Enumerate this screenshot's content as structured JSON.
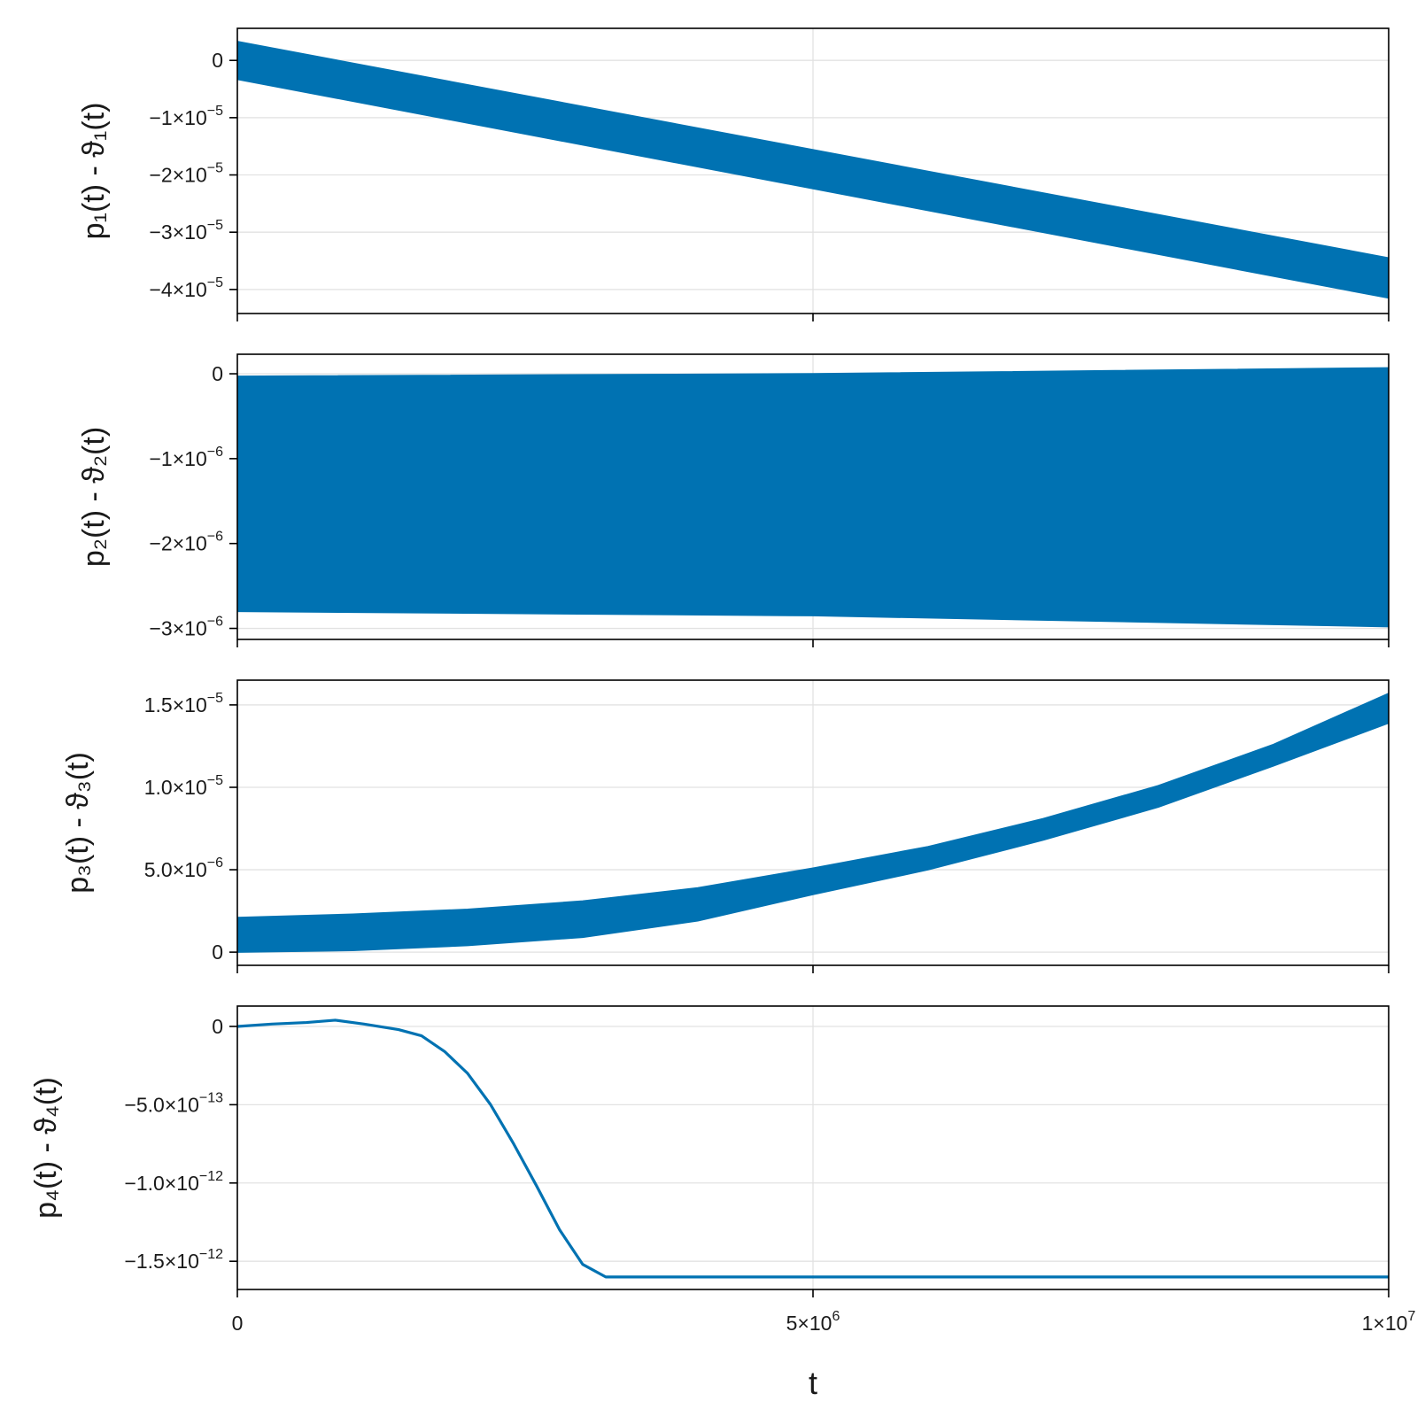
{
  "chart_data": [
    {
      "type": "area",
      "ylabel": "p₁(t) - ϑ₁(t)",
      "color": "#0072b2",
      "xlim": [
        0,
        10000000
      ],
      "ylim": [
        -4.42e-05,
        5.6e-06
      ],
      "yticks": [
        {
          "value": 0,
          "mant": "0",
          "exp": ""
        },
        {
          "value": -1e-05,
          "mant": "−1×10",
          "exp": "−5"
        },
        {
          "value": -2e-05,
          "mant": "−2×10",
          "exp": "−5"
        },
        {
          "value": -3e-05,
          "mant": "−3×10",
          "exp": "−5"
        },
        {
          "value": -4e-05,
          "mant": "−4×10",
          "exp": "−5"
        }
      ],
      "band_x": [
        0,
        10000000
      ],
      "band_upper": [
        3.3e-06,
        -3.45e-05
      ],
      "band_lower": [
        -3.3e-06,
        -4.15e-05
      ]
    },
    {
      "type": "area",
      "ylabel": "p₂(t) - ϑ₂(t)",
      "color": "#0072b2",
      "xlim": [
        0,
        10000000
      ],
      "ylim": [
        -3.13e-06,
        2.3e-07
      ],
      "yticks": [
        {
          "value": 0,
          "mant": "0",
          "exp": ""
        },
        {
          "value": -1e-06,
          "mant": "−1×10",
          "exp": "−6"
        },
        {
          "value": -2e-06,
          "mant": "−2×10",
          "exp": "−6"
        },
        {
          "value": -3e-06,
          "mant": "−3×10",
          "exp": "−6"
        }
      ],
      "band_x": [
        0,
        5000000,
        10000000
      ],
      "band_upper": [
        -3e-08,
        0.0,
        7e-08
      ],
      "band_lower": [
        -2.8e-06,
        -2.85e-06,
        -2.98e-06
      ]
    },
    {
      "type": "area",
      "ylabel": "p₃(t) - ϑ₃(t)",
      "color": "#0072b2",
      "xlim": [
        0,
        10000000
      ],
      "ylim": [
        -8e-07,
        1.65e-05
      ],
      "yticks": [
        {
          "value": 0,
          "mant": "0",
          "exp": ""
        },
        {
          "value": 5e-06,
          "mant": "5.0×10",
          "exp": "−6"
        },
        {
          "value": 1e-05,
          "mant": "1.0×10",
          "exp": "−5"
        },
        {
          "value": 1.5e-05,
          "mant": "1.5×10",
          "exp": "−5"
        }
      ],
      "band_x": [
        0,
        1000000,
        2000000,
        3000000,
        4000000,
        5000000,
        6000000,
        7000000,
        8000000,
        9000000,
        10000000
      ],
      "band_upper": [
        2.1e-06,
        2.3e-06,
        2.6e-06,
        3.1e-06,
        3.9e-06,
        5.1e-06,
        6.4e-06,
        8.1e-06,
        1.01e-05,
        1.26e-05,
        1.57e-05
      ],
      "band_lower": [
        0.0,
        1e-07,
        4e-07,
        9e-07,
        1.9e-06,
        3.5e-06,
        5e-06,
        6.8e-06,
        8.8e-06,
        1.13e-05,
        1.39e-05
      ]
    },
    {
      "type": "line",
      "ylabel": "p₄(t) - ϑ₄(t)",
      "xlabel": "t",
      "color": "#0072b2",
      "xlim": [
        0,
        10000000
      ],
      "ylim": [
        -1.68e-12,
        1.3e-13
      ],
      "yticks": [
        {
          "value": 0,
          "mant": "0",
          "exp": ""
        },
        {
          "value": -5e-13,
          "mant": "−5.0×10",
          "exp": "−13"
        },
        {
          "value": -1e-12,
          "mant": "−1.0×10",
          "exp": "−12"
        },
        {
          "value": -1.5e-12,
          "mant": "−1.5×10",
          "exp": "−12"
        }
      ],
      "xticks": [
        {
          "value": 0,
          "mant": "0",
          "exp": ""
        },
        {
          "value": 5000000,
          "mant": "5×10",
          "exp": "6"
        },
        {
          "value": 10000000,
          "mant": "1×10",
          "exp": "7"
        }
      ],
      "x": [
        0,
        300000,
        600000,
        850000,
        1100000,
        1400000,
        1600000,
        1800000,
        2000000,
        2200000,
        2400000,
        2600000,
        2800000,
        3000000,
        3200000,
        3400000,
        3500000,
        3700000,
        4000000,
        5000000,
        6000000,
        7000000,
        8000000,
        9000000,
        10000000
      ],
      "y": [
        0,
        1.5e-14,
        2.5e-14,
        4e-14,
        1.5e-14,
        -2e-14,
        -6e-14,
        -1.6e-13,
        -3e-13,
        -5e-13,
        -7.5e-13,
        -1.02e-12,
        -1.3e-12,
        -1.52e-12,
        -1.6e-12,
        -1.6e-12,
        -1.6e-12,
        -1.6e-12,
        -1.6e-12,
        -1.6e-12,
        -1.6e-12,
        -1.6e-12,
        -1.6e-12,
        -1.6e-12,
        -1.6e-12
      ]
    }
  ]
}
